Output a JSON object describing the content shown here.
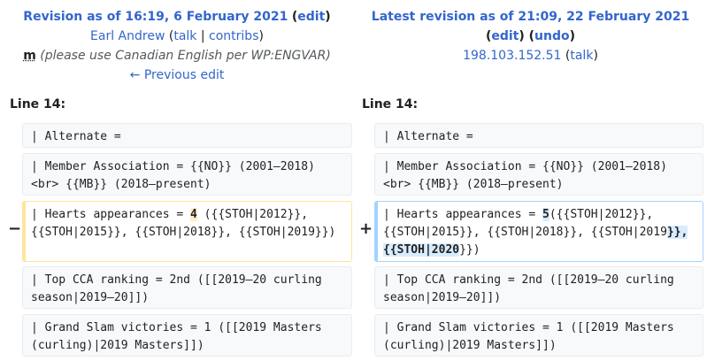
{
  "left_header": {
    "revision_title": "Revision as of 16:19, 6 February 2021",
    "edit_link": "edit",
    "user": "Earl Andrew",
    "talk": "talk",
    "contribs": "contribs",
    "minor_mark": "m",
    "comment": "(please use Canadian English per WP:ENGVAR)",
    "prev_link": "← Previous edit"
  },
  "right_header": {
    "revision_title": "Latest revision as of 21:09, 22 February 2021",
    "edit_link": "edit",
    "undo_link": "undo",
    "user": "198.103.152.51",
    "talk": "talk"
  },
  "left_line_label": "Line 14:",
  "right_line_label": "Line 14:",
  "markers": {
    "minus": "−",
    "plus": "+"
  },
  "rows": {
    "r1": {
      "left": "| Alternate =",
      "right": "| Alternate ="
    },
    "r2": {
      "left": "| Member Association = {{NO}} (2001–2018)\n<br> {{MB}} (2018–present)",
      "right": "| Member Association = {{NO}} (2001–2018)\n<br> {{MB}} (2018–present)"
    },
    "r3": {
      "left_a": "| Hearts appearances = ",
      "left_hl": "4",
      "left_b": " ({{STOH|2012}},\n{{STOH|2015}}, {{STOH|2018}}, {{STOH|2019}})",
      "right_a": "| Hearts appearances = ",
      "right_hl1": "5",
      "right_b": "({{STOH|2012}},\n{{STOH|2015}}, {{STOH|2018}}, {{STOH|2019",
      "right_hl2": "}},\n{{STOH|2020",
      "right_c": "}})"
    },
    "r4": {
      "left": "| Top CCA ranking = 2nd ([[2019–20 curling\nseason|2019–20]])",
      "right": "| Top CCA ranking = 2nd ([[2019–20 curling\nseason|2019–20]])"
    },
    "r5": {
      "left": "| Grand Slam victories = 1 ([[2019 Masters\n(curling)|2019 Masters]])",
      "right": "| Grand Slam victories = 1 ([[2019 Masters\n(curling)|2019 Masters]])"
    }
  }
}
